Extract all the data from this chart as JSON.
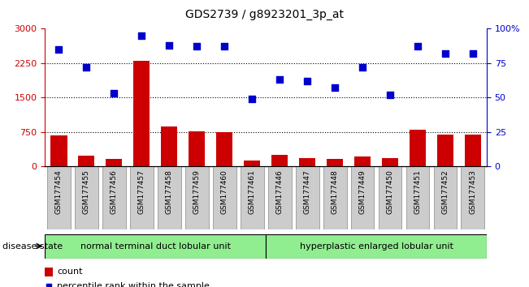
{
  "title": "GDS2739 / g8923201_3p_at",
  "samples": [
    "GSM177454",
    "GSM177455",
    "GSM177456",
    "GSM177457",
    "GSM177458",
    "GSM177459",
    "GSM177460",
    "GSM177461",
    "GSM177446",
    "GSM177447",
    "GSM177448",
    "GSM177449",
    "GSM177450",
    "GSM177451",
    "GSM177452",
    "GSM177453"
  ],
  "counts": [
    680,
    230,
    170,
    2300,
    870,
    760,
    750,
    130,
    260,
    190,
    170,
    210,
    190,
    800,
    700,
    700
  ],
  "percentiles": [
    85,
    72,
    53,
    95,
    88,
    87,
    87,
    49,
    63,
    62,
    57,
    72,
    52,
    87,
    82,
    82
  ],
  "group1_label": "normal terminal duct lobular unit",
  "group2_label": "hyperplastic enlarged lobular unit",
  "group1_count": 8,
  "group2_count": 8,
  "bar_color": "#cc0000",
  "dot_color": "#0000cc",
  "ylim_left": [
    0,
    3000
  ],
  "ylim_right": [
    0,
    100
  ],
  "yticks_left": [
    0,
    750,
    1500,
    2250,
    3000
  ],
  "yticks_right": [
    0,
    25,
    50,
    75,
    100
  ],
  "ytick_labels_right": [
    "0",
    "25",
    "50",
    "75",
    "100%"
  ],
  "grid_values": [
    750,
    1500,
    2250
  ],
  "disease_state_label": "disease state",
  "legend_count_label": "count",
  "legend_pct_label": "percentile rank within the sample",
  "group1_color": "#90ee90",
  "group2_color": "#90ee90",
  "bg_color": "#ffffff",
  "tick_area_color": "#cccccc",
  "title_color": "#000000",
  "left_axis_color": "#cc0000",
  "right_axis_color": "#0000cc"
}
